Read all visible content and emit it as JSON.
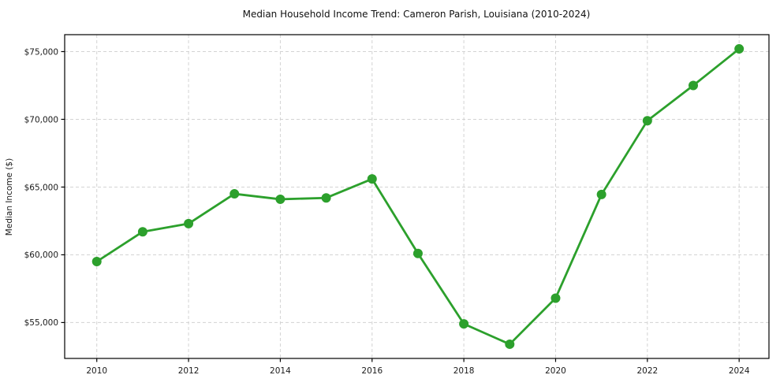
{
  "chart_data": {
    "type": "line",
    "title": "Median Household Income Trend: Cameron Parish, Louisiana (2010-2024)",
    "xlabel": "",
    "ylabel": "Median Income ($)",
    "series": [
      {
        "name": "Median Household Income",
        "x": [
          2010,
          2011,
          2012,
          2013,
          2014,
          2015,
          2016,
          2017,
          2018,
          2019,
          2020,
          2021,
          2022,
          2023,
          2024
        ],
        "y": [
          59500,
          61700,
          62300,
          64500,
          64100,
          64200,
          65600,
          60100,
          54900,
          53400,
          56800,
          64450,
          69900,
          72500,
          75200
        ]
      }
    ],
    "x_ticks": [
      2010,
      2012,
      2014,
      2016,
      2018,
      2020,
      2022,
      2024
    ],
    "x_tick_labels": [
      "2010",
      "2012",
      "2014",
      "2016",
      "2018",
      "2020",
      "2022",
      "2024"
    ],
    "y_ticks": [
      55000,
      60000,
      65000,
      70000,
      75000
    ],
    "y_tick_labels": [
      "$55,000",
      "$60,000",
      "$65,000",
      "$70,000",
      "$75,000"
    ],
    "xlim": [
      2009.3,
      2024.65
    ],
    "ylim": [
      52350,
      76250
    ],
    "grid": "dashed",
    "legend": "none",
    "marker": "circle",
    "colors": {
      "line": "#2ca02c",
      "marker": "#2ca02c",
      "grid": "#d3d3d3",
      "spine": "#000000",
      "tick_text": "#1a1a1a",
      "title_text": "#111111",
      "background": "#ffffff"
    }
  }
}
